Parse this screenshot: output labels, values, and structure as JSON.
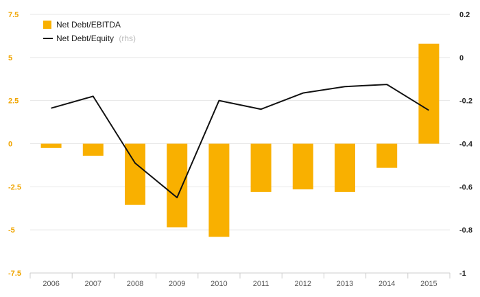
{
  "colors": {
    "bar": "#F9B000",
    "line": "#111111",
    "left_axis_text": "#F0A500",
    "right_axis_text": "#222222",
    "grid": "#e6e6e6",
    "x_axis": "#cccccc"
  },
  "chart_data": {
    "type": "bar",
    "categories": [
      "2006",
      "2007",
      "2008",
      "2009",
      "2010",
      "2011",
      "2012",
      "2013",
      "2014",
      "2015"
    ],
    "series": [
      {
        "name": "Net Debt/EBITDA",
        "type": "bar",
        "axis": "left",
        "values": [
          -0.25,
          -0.7,
          -3.55,
          -4.85,
          -5.4,
          -2.8,
          -2.65,
          -2.8,
          -1.4,
          5.8
        ]
      },
      {
        "name": "Net Debt/Equity",
        "name_suffix": "(rhs)",
        "type": "line",
        "axis": "right",
        "values": [
          -0.235,
          -0.18,
          -0.49,
          -0.65,
          -0.2,
          -0.24,
          -0.165,
          -0.135,
          -0.125,
          -0.245
        ]
      }
    ],
    "y_left": {
      "lim": [
        -7.5,
        7.5
      ],
      "ticks": [
        7.5,
        5,
        2.5,
        0,
        -2.5,
        -5,
        -7.5
      ],
      "tick_labels": [
        "7.5",
        "5",
        "2.5",
        "0",
        "-2.5",
        "-5",
        "-7.5"
      ]
    },
    "y_right": {
      "lim": [
        -1,
        0.2
      ],
      "ticks": [
        0.2,
        0,
        -0.2,
        -0.4,
        -0.6,
        -0.8,
        -1
      ],
      "tick_labels": [
        "0.2",
        "0",
        "-0.2",
        "-0.4",
        "-0.6",
        "-0.8",
        "-1"
      ]
    },
    "grid": true,
    "legend": "top-left"
  }
}
